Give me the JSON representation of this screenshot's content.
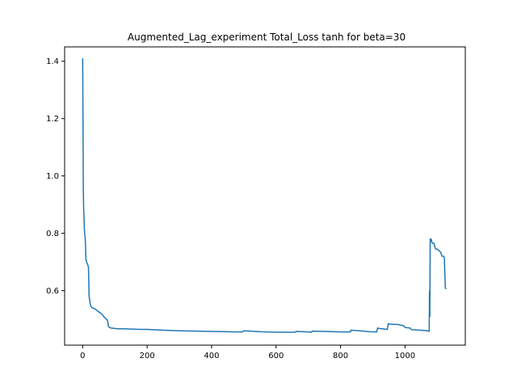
{
  "chart_data": {
    "type": "line",
    "title": "Augmented_Lag_experiment Total_Loss tanh for beta=30",
    "xlabel": "",
    "ylabel": "",
    "xlim": [
      -56,
      1187
    ],
    "ylim": [
      0.41,
      1.45
    ],
    "xticks": [
      0,
      200,
      400,
      600,
      800,
      1000
    ],
    "xtick_labels": [
      "0",
      "200",
      "400",
      "600",
      "800",
      "1000"
    ],
    "yticks": [
      0.6,
      0.8,
      1.0,
      1.2,
      1.4
    ],
    "ytick_labels": [
      "0.6",
      "0.8",
      "1.0",
      "1.2",
      "1.4"
    ],
    "grid": false,
    "legend": "none",
    "series": [
      {
        "color": "#1f77b4",
        "x": [
          0,
          1,
          2,
          3,
          4,
          5,
          6,
          7,
          8,
          9,
          10,
          12,
          14,
          16,
          18,
          20,
          22,
          24,
          26,
          30,
          35,
          40,
          45,
          50,
          55,
          60,
          65,
          70,
          72,
          74,
          76,
          78,
          80,
          84,
          88,
          95,
          100,
          110,
          120,
          130,
          150,
          180,
          200,
          220,
          250,
          300,
          350,
          400,
          450,
          470,
          495,
          500,
          520,
          550,
          600,
          650,
          660,
          662,
          700,
          710,
          712,
          750,
          800,
          830,
          832,
          860,
          890,
          912,
          915,
          920,
          945,
          948,
          950,
          955,
          980,
          985,
          995,
          1000,
          1005,
          1015,
          1020,
          1040,
          1060,
          1070,
          1075,
          1076,
          1077,
          1078,
          1079,
          1080,
          1081,
          1082,
          1085,
          1090,
          1092,
          1095,
          1100,
          1105,
          1110,
          1115,
          1120,
          1122,
          1125,
          1128
        ],
        "y": [
          1.41,
          1.2,
          0.96,
          0.89,
          0.86,
          0.82,
          0.8,
          0.79,
          0.78,
          0.75,
          0.71,
          0.7,
          0.695,
          0.69,
          0.68,
          0.58,
          0.565,
          0.55,
          0.545,
          0.54,
          0.538,
          0.535,
          0.53,
          0.526,
          0.522,
          0.518,
          0.51,
          0.505,
          0.502,
          0.5,
          0.498,
          0.49,
          0.475,
          0.471,
          0.47,
          0.469,
          0.468,
          0.467,
          0.467,
          0.467,
          0.466,
          0.465,
          0.465,
          0.464,
          0.462,
          0.46,
          0.459,
          0.458,
          0.457,
          0.456,
          0.456,
          0.46,
          0.459,
          0.457,
          0.455,
          0.455,
          0.455,
          0.458,
          0.456,
          0.455,
          0.459,
          0.458,
          0.456,
          0.456,
          0.462,
          0.46,
          0.457,
          0.456,
          0.47,
          0.468,
          0.465,
          0.485,
          0.484,
          0.483,
          0.482,
          0.48,
          0.478,
          0.472,
          0.471,
          0.47,
          0.464,
          0.463,
          0.461,
          0.46,
          0.458,
          0.6,
          0.51,
          0.78,
          0.77,
          0.78,
          0.78,
          0.775,
          0.765,
          0.765,
          0.755,
          0.745,
          0.745,
          0.74,
          0.735,
          0.72,
          0.72,
          0.715,
          0.61,
          0.606
        ]
      }
    ]
  }
}
